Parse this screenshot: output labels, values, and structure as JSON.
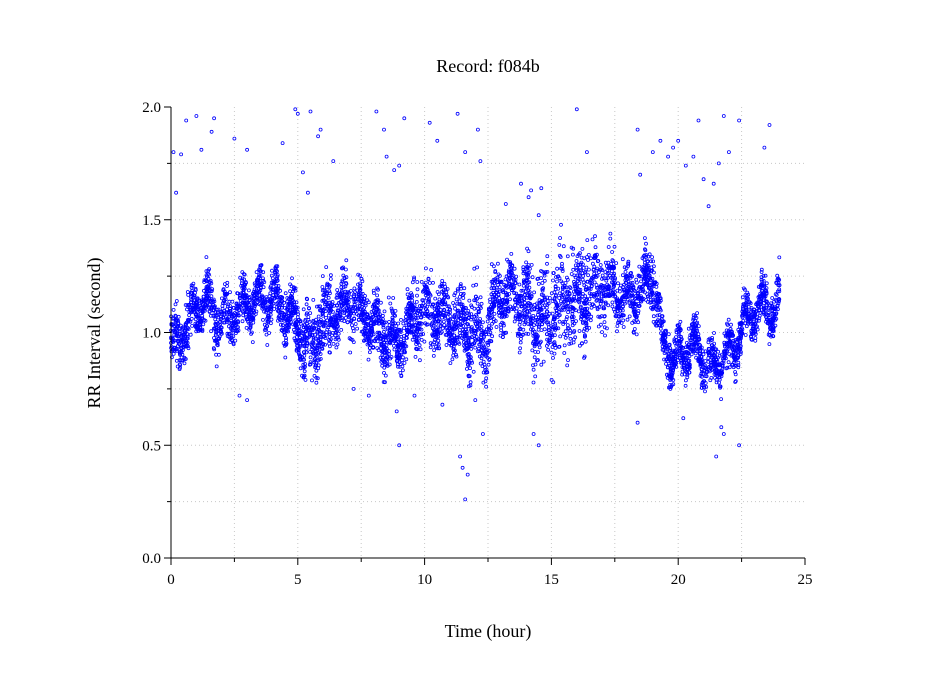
{
  "chart_data": {
    "type": "scatter",
    "title": "Record:  f084b",
    "xlabel": "Time (hour)",
    "ylabel": "RR Interval (second)",
    "xlim": [
      0,
      25
    ],
    "ylim": [
      0,
      2
    ],
    "x_ticks": [
      0,
      5,
      10,
      15,
      20,
      25
    ],
    "x_tick_labels": [
      "0",
      "5",
      "10",
      "15",
      "20",
      "25"
    ],
    "y_ticks": [
      0,
      0.5,
      1,
      1.5,
      2
    ],
    "y_tick_labels": [
      "0.0",
      "0.5",
      "1.0",
      "1.5",
      "2.0"
    ],
    "grid": true,
    "marker_color": "#0000ff",
    "series": [
      {
        "band_profile": {
          "x": [
            0,
            0.3,
            0.6,
            1.0,
            1.4,
            1.8,
            2.4,
            3.0,
            3.6,
            4.2,
            4.8,
            5.2,
            5.6,
            6.0,
            6.5,
            7.0,
            7.5,
            8.0,
            8.6,
            9.0,
            9.4,
            9.8,
            10.4,
            11.0,
            11.6,
            12.0,
            12.4,
            12.8,
            13.4,
            14.0,
            14.6,
            15.2,
            15.8,
            16.4,
            17.0,
            17.6,
            18.0,
            18.5,
            19.0,
            19.4,
            19.8,
            20.2,
            20.6,
            21.0,
            21.4,
            21.8,
            22.2,
            22.6,
            23.0,
            23.4,
            23.8,
            24.0
          ],
          "center": [
            0.98,
            0.95,
            1.02,
            1.1,
            1.15,
            1.05,
            1.08,
            1.12,
            1.15,
            1.13,
            1.05,
            0.98,
            0.95,
            1.05,
            1.1,
            1.12,
            1.1,
            1.02,
            0.98,
            0.95,
            1.05,
            1.08,
            1.1,
            1.05,
            1.02,
            1.0,
            0.95,
            1.15,
            1.18,
            1.12,
            1.05,
            1.1,
            1.15,
            1.18,
            1.2,
            1.18,
            1.15,
            1.2,
            1.25,
            0.95,
            0.88,
            0.92,
            0.95,
            0.88,
            0.85,
            0.9,
            0.92,
            1.05,
            1.1,
            1.12,
            1.08,
            1.15
          ],
          "spread": [
            0.1,
            0.12,
            0.12,
            0.1,
            0.1,
            0.12,
            0.1,
            0.1,
            0.1,
            0.1,
            0.12,
            0.15,
            0.15,
            0.15,
            0.15,
            0.12,
            0.12,
            0.12,
            0.12,
            0.12,
            0.12,
            0.15,
            0.15,
            0.12,
            0.15,
            0.18,
            0.15,
            0.15,
            0.12,
            0.18,
            0.22,
            0.22,
            0.22,
            0.2,
            0.15,
            0.12,
            0.12,
            0.12,
            0.12,
            0.1,
            0.1,
            0.1,
            0.1,
            0.1,
            0.1,
            0.1,
            0.1,
            0.1,
            0.1,
            0.1,
            0.1,
            0.12
          ]
        },
        "outliers": {
          "x": [
            0.1,
            0.2,
            0.4,
            0.6,
            1.0,
            1.2,
            1.6,
            1.7,
            2.5,
            3.0,
            4.4,
            4.9,
            5.0,
            5.2,
            5.4,
            5.5,
            5.8,
            5.9,
            6.4,
            8.1,
            8.4,
            8.5,
            8.8,
            9.0,
            9.2,
            10.2,
            10.5,
            11.3,
            11.6,
            12.1,
            12.2,
            13.2,
            13.8,
            14.1,
            14.2,
            14.5,
            14.6,
            16.0,
            16.4,
            18.4,
            18.5,
            19.0,
            19.3,
            19.6,
            19.8,
            20.0,
            20.3,
            20.6,
            20.8,
            21.0,
            21.2,
            21.4,
            21.6,
            21.8,
            22.0,
            22.4,
            23.4,
            23.6,
            8.9,
            9.0,
            10.7,
            11.4,
            11.5,
            11.6,
            11.7,
            12.3,
            14.3,
            14.5,
            18.4,
            20.2,
            21.5,
            21.7,
            21.8,
            22.4,
            2.7,
            3.0,
            7.2,
            7.8,
            9.6,
            12.0
          ],
          "y": [
            1.8,
            1.62,
            1.79,
            1.94,
            1.96,
            1.81,
            1.89,
            1.95,
            1.86,
            1.81,
            1.84,
            1.99,
            1.97,
            1.71,
            1.62,
            1.98,
            1.87,
            1.9,
            1.76,
            1.98,
            1.9,
            1.78,
            1.72,
            1.74,
            1.95,
            1.93,
            1.85,
            1.97,
            1.8,
            1.9,
            1.76,
            1.57,
            1.66,
            1.6,
            1.63,
            1.52,
            1.64,
            1.99,
            1.8,
            1.9,
            1.7,
            1.8,
            1.85,
            1.78,
            1.82,
            1.85,
            1.74,
            1.78,
            1.94,
            1.68,
            1.56,
            1.66,
            1.75,
            1.96,
            1.8,
            1.94,
            1.82,
            1.92,
            0.65,
            0.5,
            0.68,
            0.45,
            0.4,
            0.26,
            0.37,
            0.55,
            0.55,
            0.5,
            0.6,
            0.62,
            0.45,
            0.58,
            0.55,
            0.5,
            0.72,
            0.7,
            0.75,
            0.72,
            0.72,
            0.7
          ]
        }
      }
    ]
  }
}
